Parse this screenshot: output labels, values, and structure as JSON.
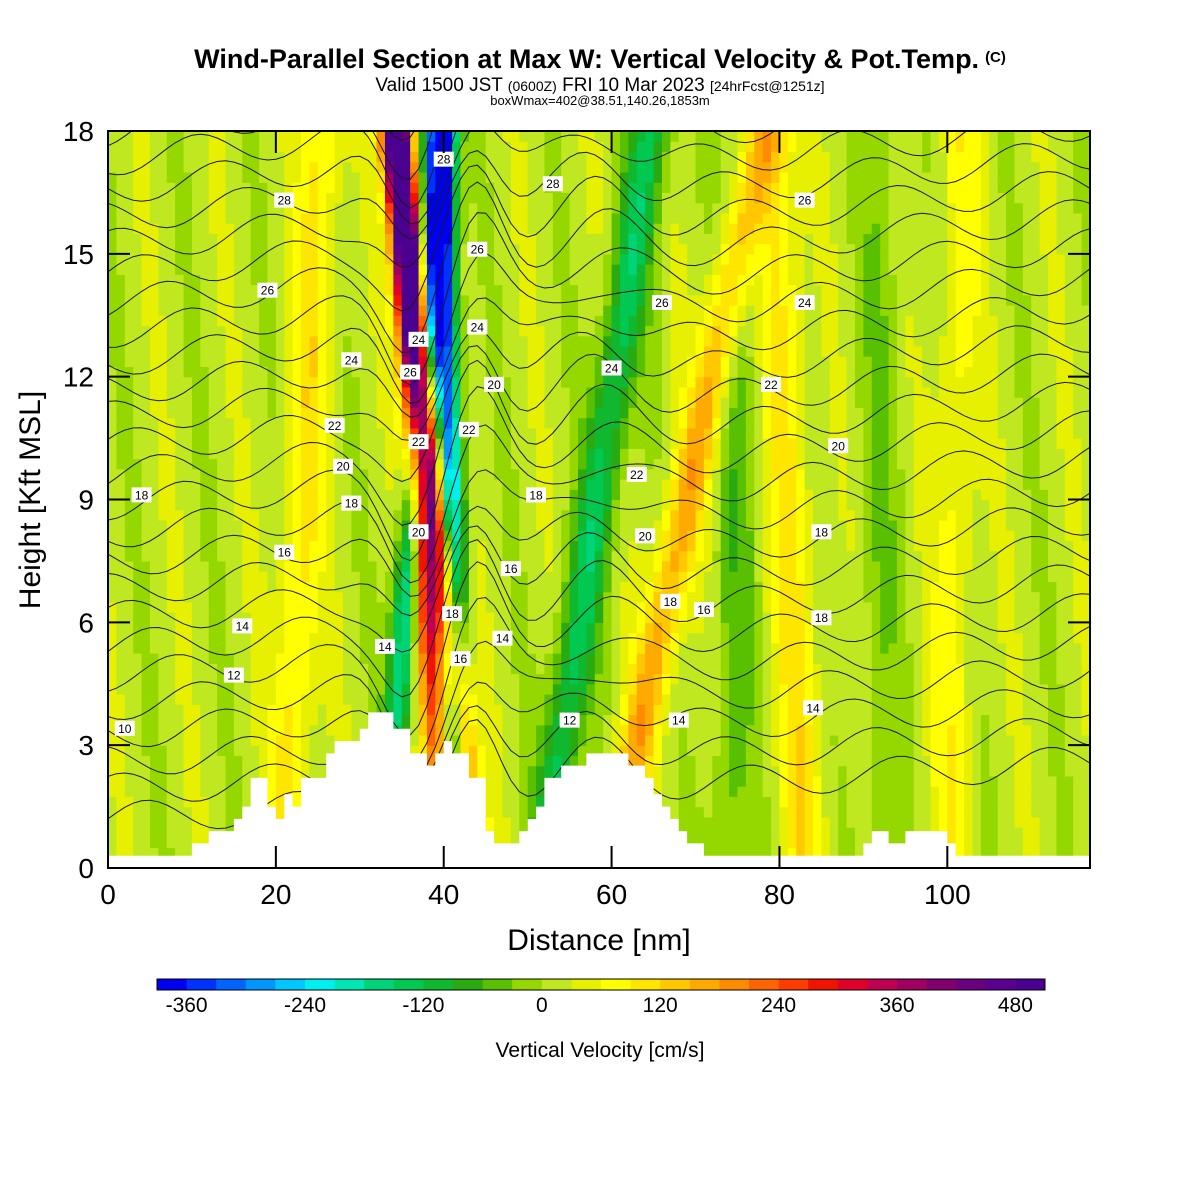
{
  "header": {
    "title": "Wind-Parallel Section at Max W: Vertical Velocity & Pot.Temp.",
    "title_mark": "(C)",
    "subtitle_a": "Valid 1500 JST",
    "subtitle_b": "(0600Z)",
    "subtitle_c": "FRI 10 Mar 2023",
    "subtitle_d": "[24hrFcst@1251z]",
    "line3": "boxWmax=402@38.51,140.26,1853m"
  },
  "chart_data": {
    "type": "heatmap",
    "xlabel": "Distance [nm]",
    "ylabel": "Height [Kft MSL]",
    "xlim": [
      0,
      117
    ],
    "ylim": [
      0,
      18
    ],
    "x_ticks": [
      "0",
      "20",
      "40",
      "60",
      "80",
      "100"
    ],
    "y_ticks": [
      "0",
      "3",
      "6",
      "9",
      "12",
      "15",
      "18"
    ],
    "colorbar": {
      "label": "Vertical Velocity [cm/s]",
      "ticks": [
        "-360",
        "-240",
        "-120",
        "0",
        "120",
        "240",
        "360",
        "480"
      ],
      "levels": [
        -390,
        -360,
        -330,
        -300,
        -270,
        -240,
        -210,
        -180,
        -150,
        -120,
        -90,
        -60,
        -30,
        0,
        30,
        60,
        90,
        120,
        150,
        180,
        210,
        240,
        270,
        300,
        330,
        360,
        390,
        420,
        450,
        480,
        510
      ],
      "colors": [
        "#0000f0",
        "#0032ff",
        "#0064ff",
        "#0096ff",
        "#00c8ff",
        "#00f0f0",
        "#00e6b4",
        "#00d478",
        "#00c850",
        "#10b830",
        "#28aa10",
        "#58c000",
        "#94d800",
        "#c0e820",
        "#e6f000",
        "#ffff00",
        "#ffe600",
        "#ffc800",
        "#ffaa00",
        "#ff8c00",
        "#ff6400",
        "#ff3c00",
        "#f01400",
        "#e00028",
        "#c00050",
        "#a00060",
        "#800070",
        "#6a0080",
        "#5a0090",
        "#4b0090"
      ]
    },
    "terrain_kft": [
      [
        0,
        0.3
      ],
      [
        10,
        0.3
      ],
      [
        10,
        0.6
      ],
      [
        12,
        0.6
      ],
      [
        12,
        0.9
      ],
      [
        15,
        0.9
      ],
      [
        15,
        1.2
      ],
      [
        16,
        1.2
      ],
      [
        16,
        1.5
      ],
      [
        17,
        1.5
      ],
      [
        17,
        2.2
      ],
      [
        19,
        2.2
      ],
      [
        19,
        1.5
      ],
      [
        20,
        1.5
      ],
      [
        20,
        1.2
      ],
      [
        21,
        1.2
      ],
      [
        21,
        1.8
      ],
      [
        22,
        1.8
      ],
      [
        22,
        1.5
      ],
      [
        23,
        1.5
      ],
      [
        23,
        2.2
      ],
      [
        26,
        2.2
      ],
      [
        26,
        2.8
      ],
      [
        27,
        2.8
      ],
      [
        27,
        3.1
      ],
      [
        30,
        3.1
      ],
      [
        30,
        3.4
      ],
      [
        31,
        3.4
      ],
      [
        31,
        3.8
      ],
      [
        34,
        3.8
      ],
      [
        34,
        3.4
      ],
      [
        36,
        3.4
      ],
      [
        36,
        2.8
      ],
      [
        38,
        2.8
      ],
      [
        38,
        2.5
      ],
      [
        39,
        2.5
      ],
      [
        39,
        2.8
      ],
      [
        40,
        2.8
      ],
      [
        40,
        3.1
      ],
      [
        41,
        3.1
      ],
      [
        41,
        2.8
      ],
      [
        43,
        2.8
      ],
      [
        43,
        2.2
      ],
      [
        45,
        2.2
      ],
      [
        45,
        0.9
      ],
      [
        46,
        0.9
      ],
      [
        46,
        0.6
      ],
      [
        49,
        0.6
      ],
      [
        49,
        0.9
      ],
      [
        50,
        0.9
      ],
      [
        50,
        1.2
      ],
      [
        51,
        1.2
      ],
      [
        51,
        1.5
      ],
      [
        52,
        1.5
      ],
      [
        52,
        2.2
      ],
      [
        54,
        2.2
      ],
      [
        54,
        2.5
      ],
      [
        57,
        2.5
      ],
      [
        57,
        2.8
      ],
      [
        62,
        2.8
      ],
      [
        62,
        2.5
      ],
      [
        64,
        2.5
      ],
      [
        64,
        2.2
      ],
      [
        65,
        2.2
      ],
      [
        65,
        1.8
      ],
      [
        66,
        1.8
      ],
      [
        66,
        1.5
      ],
      [
        67,
        1.5
      ],
      [
        67,
        1.2
      ],
      [
        68,
        1.2
      ],
      [
        68,
        0.9
      ],
      [
        69,
        0.9
      ],
      [
        69,
        0.6
      ],
      [
        71,
        0.6
      ],
      [
        71,
        0.3
      ],
      [
        90,
        0.3
      ],
      [
        90,
        0.6
      ],
      [
        91,
        0.6
      ],
      [
        91,
        0.9
      ],
      [
        93,
        0.9
      ],
      [
        93,
        0.6
      ],
      [
        95,
        0.6
      ],
      [
        95,
        0.9
      ],
      [
        100,
        0.9
      ],
      [
        100,
        0.6
      ],
      [
        101,
        0.6
      ],
      [
        101,
        0.3
      ],
      [
        117,
        0.3
      ]
    ],
    "updraft_bands": [
      {
        "center_x_base": 21,
        "slope_nm_per_kft": 0.25,
        "w": 90
      },
      {
        "center_x_base": 44,
        "slope_nm_per_kft": -0.55,
        "w": 400
      },
      {
        "center_x_base": 40,
        "slope_nm_per_kft": -0.3,
        "w": 330
      },
      {
        "center_x_base": 60,
        "slope_nm_per_kft": 1.0,
        "w": 150
      },
      {
        "center_x_base": 83,
        "slope_nm_per_kft": -0.2,
        "w": 90
      },
      {
        "center_x_base": 100,
        "slope_nm_per_kft": 0.1,
        "w": 60
      }
    ],
    "downdraft_bands": [
      {
        "center_x_base": 33,
        "slope_nm_per_kft": 0.4,
        "w": -240
      },
      {
        "center_x_base": 42,
        "slope_nm_per_kft": -0.15,
        "w": -360
      },
      {
        "center_x_base": 52,
        "slope_nm_per_kft": 0.7,
        "w": -150
      },
      {
        "center_x_base": 74,
        "slope_nm_per_kft": 0.1,
        "w": -60
      },
      {
        "center_x_base": 92,
        "slope_nm_per_kft": 0,
        "w": -40
      }
    ],
    "contour_labels": [
      {
        "text": "28",
        "x": 21,
        "y": 16.3
      },
      {
        "text": "28",
        "x": 40,
        "y": 17.3
      },
      {
        "text": "28",
        "x": 53,
        "y": 16.7
      },
      {
        "text": "26",
        "x": 83,
        "y": 16.3
      },
      {
        "text": "26",
        "x": 19,
        "y": 14.1
      },
      {
        "text": "26",
        "x": 44,
        "y": 15.1
      },
      {
        "text": "26",
        "x": 66,
        "y": 13.8
      },
      {
        "text": "24",
        "x": 83,
        "y": 13.8
      },
      {
        "text": "24",
        "x": 37,
        "y": 12.9
      },
      {
        "text": "24",
        "x": 44,
        "y": 13.2
      },
      {
        "text": "26",
        "x": 36,
        "y": 12.1
      },
      {
        "text": "24",
        "x": 29,
        "y": 12.4
      },
      {
        "text": "24",
        "x": 60,
        "y": 12.2
      },
      {
        "text": "20",
        "x": 46,
        "y": 11.8
      },
      {
        "text": "22",
        "x": 79,
        "y": 11.8
      },
      {
        "text": "22",
        "x": 27,
        "y": 10.8
      },
      {
        "text": "22",
        "x": 37,
        "y": 10.4
      },
      {
        "text": "22",
        "x": 43,
        "y": 10.7
      },
      {
        "text": "20",
        "x": 87,
        "y": 10.3
      },
      {
        "text": "20",
        "x": 28,
        "y": 9.8
      },
      {
        "text": "22",
        "x": 63,
        "y": 9.6
      },
      {
        "text": "18",
        "x": 4,
        "y": 9.1
      },
      {
        "text": "18",
        "x": 51,
        "y": 9.1
      },
      {
        "text": "18",
        "x": 29,
        "y": 8.9
      },
      {
        "text": "20",
        "x": 37,
        "y": 8.2
      },
      {
        "text": "20",
        "x": 64,
        "y": 8.1
      },
      {
        "text": "18",
        "x": 85,
        "y": 8.2
      },
      {
        "text": "16",
        "x": 21,
        "y": 7.7
      },
      {
        "text": "16",
        "x": 48,
        "y": 7.3
      },
      {
        "text": "18",
        "x": 67,
        "y": 6.5
      },
      {
        "text": "16",
        "x": 71,
        "y": 6.3
      },
      {
        "text": "18",
        "x": 41,
        "y": 6.2
      },
      {
        "text": "14",
        "x": 16,
        "y": 5.9
      },
      {
        "text": "14",
        "x": 47,
        "y": 5.6
      },
      {
        "text": "18",
        "x": 85,
        "y": 6.1
      },
      {
        "text": "14",
        "x": 33,
        "y": 5.4
      },
      {
        "text": "16",
        "x": 42,
        "y": 5.1
      },
      {
        "text": "12",
        "x": 15,
        "y": 4.7
      },
      {
        "text": "12",
        "x": 55,
        "y": 3.6
      },
      {
        "text": "14",
        "x": 68,
        "y": 3.6
      },
      {
        "text": "14",
        "x": 84,
        "y": 3.9
      },
      {
        "text": "10",
        "x": 2,
        "y": 3.4
      }
    ]
  }
}
